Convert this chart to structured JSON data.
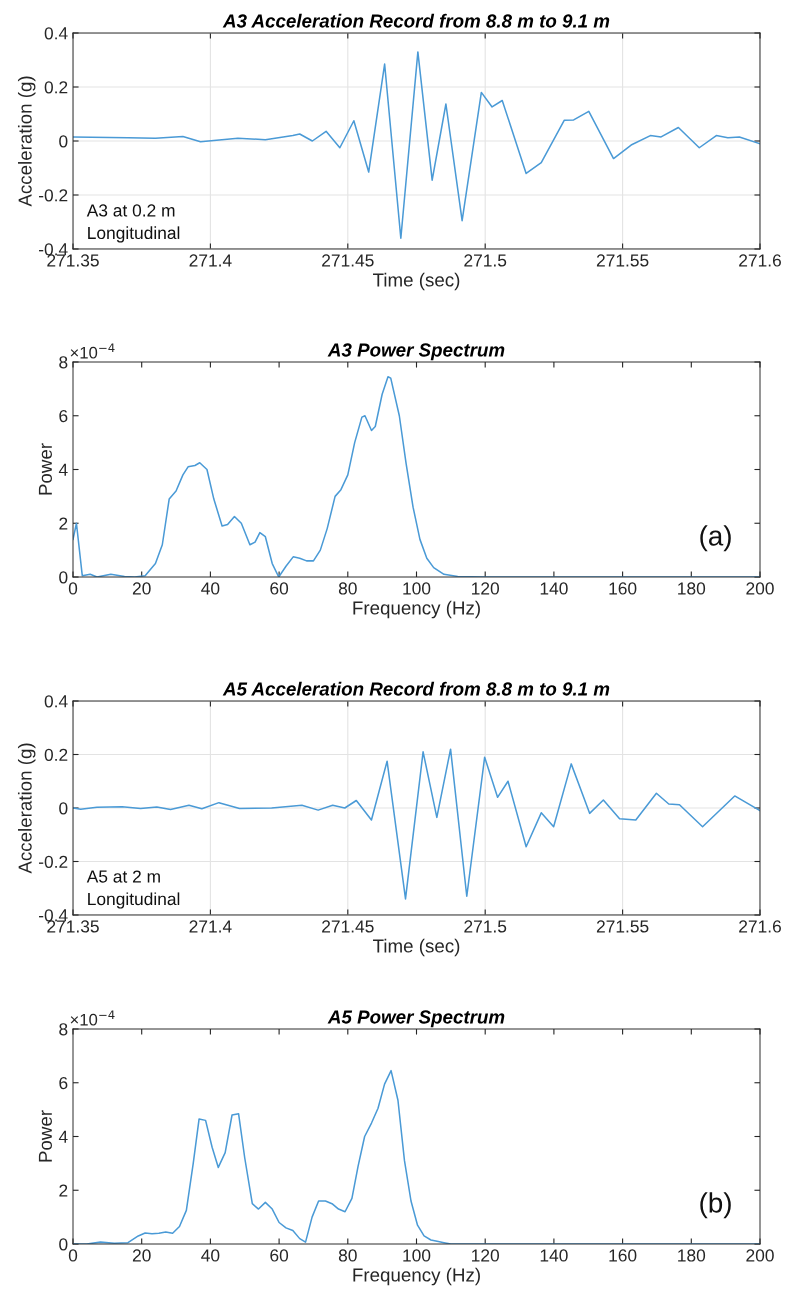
{
  "chart_data": [
    {
      "type": "line",
      "title": "A3 Acceleration Record from 8.8 m to 9.1 m",
      "xlabel": "Time (sec)",
      "ylabel": "Acceleration (g)",
      "xlim": [
        271.35,
        271.6
      ],
      "xticks": [
        271.35,
        271.4,
        271.45,
        271.5,
        271.55,
        271.6
      ],
      "ylim": [
        -0.4,
        0.4
      ],
      "yticks": [
        -0.4,
        -0.2,
        0,
        0.2,
        0.4
      ],
      "grid": true,
      "annotations": [
        "A3 at 0.2 m\nLongitudinal"
      ],
      "series": [
        {
          "color": "#4a9ad6",
          "x": [
            271.35,
            271.37,
            271.38,
            271.39,
            271.3964,
            271.41,
            271.42,
            271.43,
            271.4325,
            271.4371,
            271.4421,
            271.4471,
            271.4522,
            271.4576,
            271.4634,
            271.4693,
            271.4755,
            271.4807,
            271.4857,
            271.4916,
            271.4986,
            271.5025,
            271.5062,
            271.5149,
            271.5204,
            271.5288,
            271.5322,
            271.5377,
            271.5467,
            271.5531,
            271.5601,
            271.564,
            271.5703,
            271.5779,
            271.5841,
            271.5883,
            271.5925,
            271.6
          ],
          "values": [
            0.015,
            0.012,
            0.01,
            0.017,
            -0.003,
            0.01,
            0.005,
            0.02,
            0.026,
            0.0,
            0.036,
            -0.025,
            0.075,
            -0.115,
            0.285,
            -0.36,
            0.33,
            -0.145,
            0.137,
            -0.295,
            0.18,
            0.126,
            0.15,
            -0.12,
            -0.08,
            0.077,
            0.078,
            0.11,
            -0.065,
            -0.015,
            0.02,
            0.015,
            0.05,
            -0.025,
            0.02,
            0.012,
            0.015,
            -0.01
          ]
        }
      ]
    },
    {
      "type": "line",
      "title": "A3 Power Spectrum",
      "xlabel": "Frequency (Hz)",
      "ylabel": "Power",
      "xlim": [
        0,
        200
      ],
      "xticks": [
        0,
        20,
        40,
        60,
        80,
        100,
        120,
        140,
        160,
        180,
        200
      ],
      "ylim": [
        0,
        8
      ],
      "yticks": [
        0,
        2,
        4,
        6,
        8
      ],
      "grid": false,
      "annotations": [
        "×10$^{−4}$",
        "(a)"
      ],
      "series": [
        {
          "color": "#4a9ad6",
          "x": [
            0,
            1,
            2.7,
            5,
            7,
            11,
            15,
            18,
            21,
            24,
            26,
            28,
            30,
            32,
            33.5,
            35.5,
            36.9,
            39,
            41,
            43.4,
            45,
            47,
            49,
            51.5,
            53,
            54.4,
            56,
            58,
            59.9,
            62,
            64.1,
            66,
            68,
            70,
            72,
            74,
            76.3,
            78,
            80,
            82,
            84.1,
            85,
            86.9,
            88,
            90,
            91.7,
            92.5,
            95,
            97,
            99,
            101,
            103,
            105,
            108,
            112,
            120,
            200
          ],
          "values": [
            1.4,
            2.0,
            0.05,
            0.1,
            0,
            0.1,
            0.02,
            0,
            0.05,
            0.5,
            1.2,
            2.9,
            3.2,
            3.8,
            4.1,
            4.15,
            4.25,
            4.0,
            2.9,
            1.9,
            1.95,
            2.25,
            2.0,
            1.2,
            1.3,
            1.65,
            1.5,
            0.5,
            0,
            0.4,
            0.75,
            0.7,
            0.6,
            0.6,
            1.0,
            1.8,
            3.0,
            3.25,
            3.8,
            5.0,
            5.95,
            6.0,
            5.45,
            5.6,
            6.8,
            7.45,
            7.4,
            6.0,
            4.2,
            2.6,
            1.4,
            0.7,
            0.35,
            0.1,
            0.02,
            0,
            0
          ]
        }
      ]
    },
    {
      "type": "line",
      "title": "A5 Acceleration Record from 8.8 m to 9.1 m",
      "xlabel": "Time (sec)",
      "ylabel": "Acceleration (g)",
      "xlim": [
        271.35,
        271.6
      ],
      "xticks": [
        271.35,
        271.4,
        271.45,
        271.5,
        271.55,
        271.6
      ],
      "ylim": [
        -0.4,
        0.4
      ],
      "yticks": [
        -0.4,
        -0.2,
        0,
        0.2,
        0.4
      ],
      "grid": true,
      "annotations": [
        "A5 at 2 m\nLongitudinal"
      ],
      "series": [
        {
          "color": "#4a9ad6",
          "x": [
            271.35,
            271.3528,
            271.3587,
            271.3679,
            271.3746,
            271.3805,
            271.3855,
            271.3922,
            271.3969,
            271.4031,
            271.4106,
            271.4223,
            271.4333,
            271.4392,
            271.4445,
            271.4489,
            271.4531,
            271.4586,
            271.4643,
            271.471,
            271.4774,
            271.4824,
            271.4874,
            271.4933,
            271.4998,
            271.5045,
            271.5083,
            271.5149,
            271.5204,
            271.5249,
            271.5313,
            271.538,
            271.543,
            271.5489,
            271.5548,
            271.5623,
            271.5668,
            271.5707,
            271.5791,
            271.5908,
            271.6
          ],
          "values": [
            0,
            -0.005,
            0.003,
            0.005,
            -0.002,
            0.004,
            -0.006,
            0.01,
            -0.003,
            0.02,
            -0.002,
            0.0,
            0.01,
            -0.008,
            0.01,
            0.0,
            0.028,
            -0.045,
            0.175,
            -0.34,
            0.21,
            -0.035,
            0.22,
            -0.33,
            0.19,
            0.04,
            0.1,
            -0.145,
            -0.018,
            -0.07,
            0.165,
            -0.02,
            0.03,
            -0.04,
            -0.045,
            0.055,
            0.015,
            0.012,
            -0.07,
            0.045,
            -0.01
          ]
        }
      ]
    },
    {
      "type": "line",
      "title": "A5 Power Spectrum",
      "xlabel": "Frequency (Hz)",
      "ylabel": "Power",
      "xlim": [
        0,
        200
      ],
      "xticks": [
        0,
        20,
        40,
        60,
        80,
        100,
        120,
        140,
        160,
        180,
        200
      ],
      "ylim": [
        0,
        8
      ],
      "yticks": [
        0,
        2,
        4,
        6,
        8
      ],
      "grid": false,
      "annotations": [
        "×10$^{−4}$",
        "(b)"
      ],
      "series": [
        {
          "color": "#4a9ad6",
          "x": [
            0,
            4,
            8,
            12,
            16,
            19,
            21,
            23,
            25,
            27,
            29,
            31,
            33,
            35,
            36.7,
            38.6,
            40.5,
            42.3,
            44.3,
            46.3,
            48.2,
            50,
            52.2,
            54,
            56,
            58,
            60,
            62,
            64,
            66,
            67.7,
            69.6,
            71.5,
            73.5,
            75.4,
            77.3,
            79.2,
            81.2,
            83,
            84.9,
            86.9,
            88.8,
            90.7,
            92.6,
            94.6,
            96.5,
            98.4,
            100.3,
            102.2,
            104.2,
            106,
            108,
            110,
            200
          ],
          "values": [
            0,
            0,
            0.07,
            0.03,
            0.05,
            0.3,
            0.41,
            0.38,
            0.4,
            0.45,
            0.4,
            0.65,
            1.25,
            3.0,
            4.65,
            4.6,
            3.6,
            2.85,
            3.4,
            4.8,
            4.85,
            3.2,
            1.5,
            1.3,
            1.55,
            1.3,
            0.8,
            0.6,
            0.5,
            0.2,
            0.07,
            1.0,
            1.6,
            1.6,
            1.5,
            1.3,
            1.2,
            1.7,
            2.9,
            4.0,
            4.5,
            5.05,
            5.95,
            6.45,
            5.35,
            3.1,
            1.6,
            0.7,
            0.3,
            0.15,
            0.1,
            0.05,
            0,
            0
          ]
        }
      ]
    }
  ]
}
